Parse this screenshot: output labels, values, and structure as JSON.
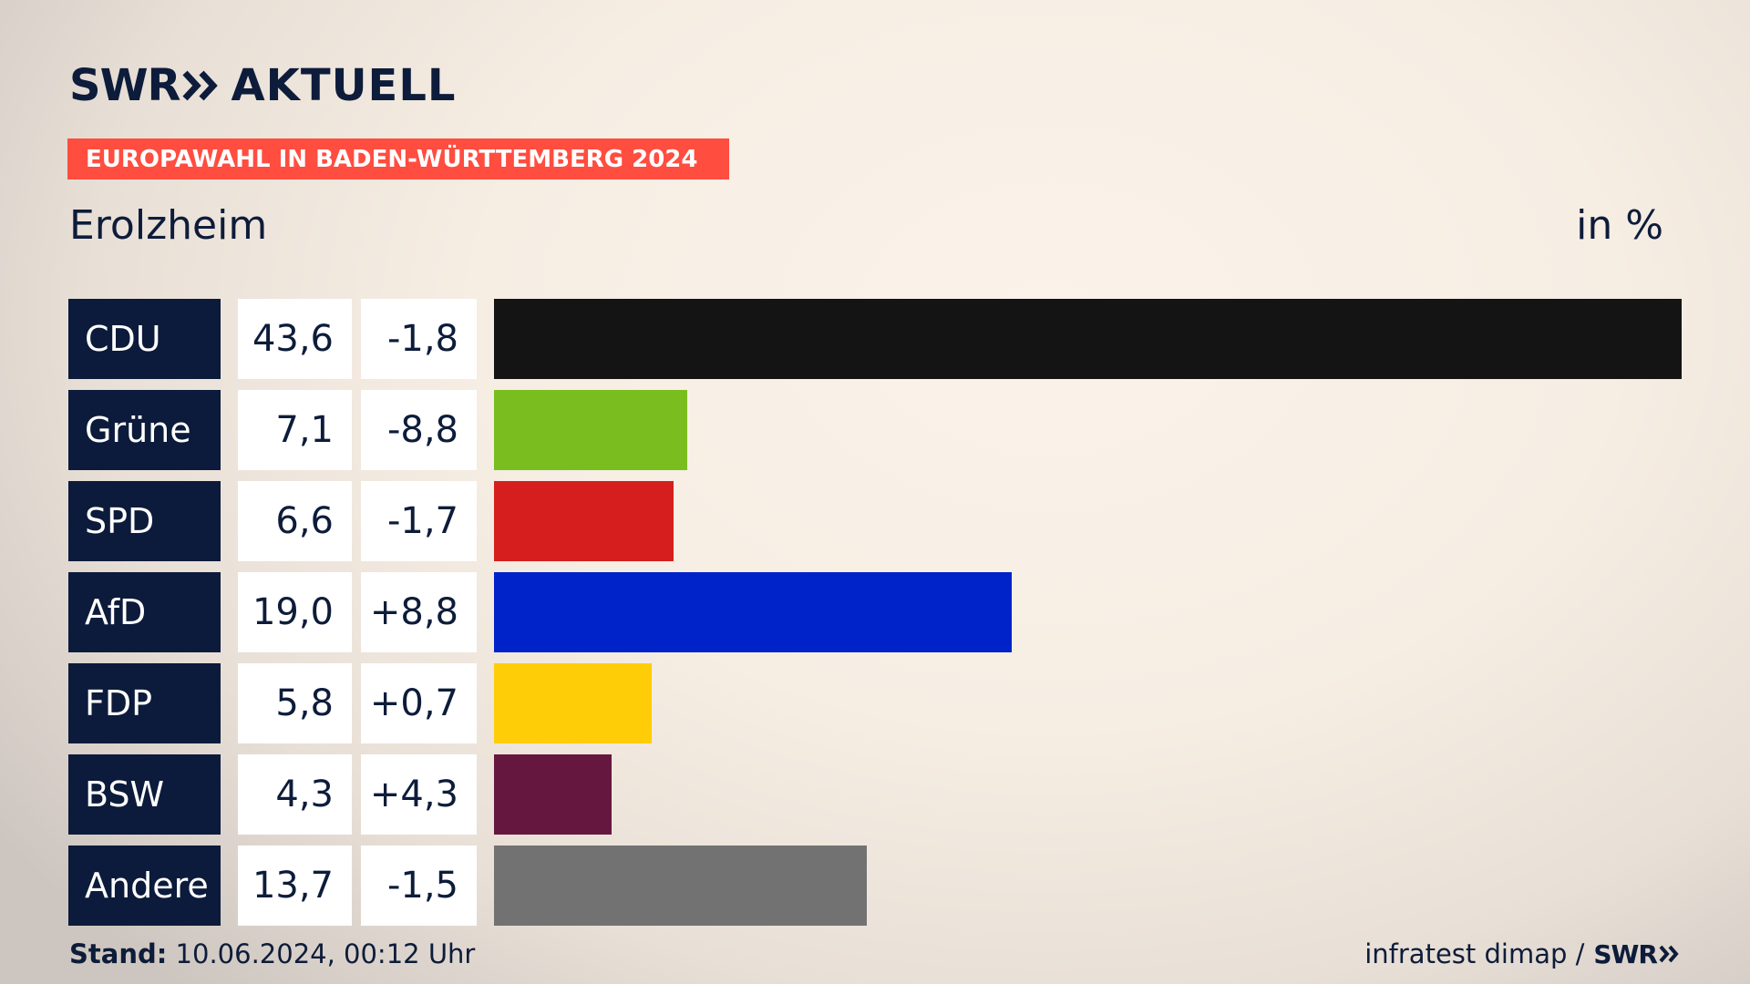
{
  "header": {
    "logo_swr": "SWR",
    "logo_aktuell": "AKTUELL",
    "banner": "EUROPAWAHL IN BADEN-WÜRTTEMBERG 2024",
    "region": "Erolzheim",
    "unit": "in %"
  },
  "footer": {
    "stand_label": "Stand:",
    "stand_value": "10.06.2024, 00:12 Uhr",
    "source": "infratest dimap /",
    "source_logo": "SWR"
  },
  "colors": {
    "navy": "#0c1b3b",
    "banner": "#ff4d40"
  },
  "chart_data": {
    "type": "bar",
    "categories": [
      "CDU",
      "Grüne",
      "SPD",
      "AfD",
      "FDP",
      "BSW",
      "Andere"
    ],
    "values": [
      43.6,
      7.1,
      6.6,
      19.0,
      5.8,
      4.3,
      13.7
    ],
    "value_labels": [
      "43,6",
      "7,1",
      "6,6",
      "19,0",
      "5,8",
      "4,3",
      "13,7"
    ],
    "diffs": [
      -1.8,
      -8.8,
      -1.7,
      8.8,
      0.7,
      4.3,
      -1.5
    ],
    "diff_labels": [
      "-1,8",
      "-8,8",
      "-1,7",
      "+8,8",
      "+0,7",
      "+4,3",
      "-1,5"
    ],
    "bar_colors": [
      "#141414",
      "#7abd1e",
      "#d61e1e",
      "#0022c9",
      "#ffcd08",
      "#66173f",
      "#727272"
    ],
    "xlim": [
      0,
      43.6
    ],
    "orientation": "horizontal",
    "grid": false
  }
}
